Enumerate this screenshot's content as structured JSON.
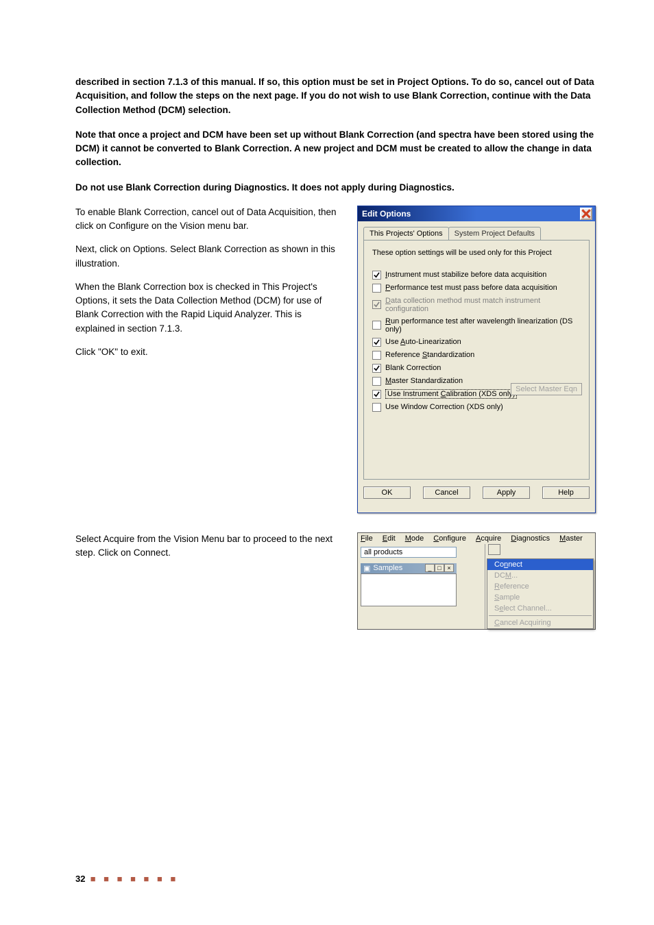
{
  "paragraphs": {
    "p1": "described in section 7.1.3 of this manual. If so, this option must be set in Project Options. To do so, cancel out of Data Acquisition, and follow the steps on the next page. If you do not wish to use Blank Correction, continue with the Data Collection Method (DCM) selection.",
    "p2": "Note that once a project and DCM have been set up without Blank Correction (and spectra have been stored using the DCM) it cannot be converted to Blank Correction. A new project and DCM must be created to allow the change in data collection.",
    "p3": "Do not use Blank Correction during Diagnostics. It does not apply during Diagnostics.",
    "l1": "To enable Blank Correction, cancel out of Data Acquisition, then click on Configure on the Vision menu bar.",
    "l2": "Next, click on Options. Select Blank Correction as shown in this illustration.",
    "l3": "When the Blank Correction box is checked in This Project's Options, it sets the Data Collection Method (DCM) for use of Blank Correction with the Rapid Liquid Analyzer. This is explained in section 7.1.3.",
    "l4": "Click \"OK\" to exit.",
    "l5": "Select Acquire from the Vision Menu bar to proceed to the next step. Click on Connect."
  },
  "dialog": {
    "title": "Edit Options",
    "tabs": [
      "This Projects' Options",
      "System Project Defaults"
    ],
    "note": "These option settings will be used only for this Project",
    "checks": [
      {
        "checked": true,
        "disabled": false,
        "label": "Instrument must stabilize before data acquisition",
        "underline_idx": 0
      },
      {
        "checked": false,
        "disabled": false,
        "label": "Performance test must pass before data acquisition",
        "underline_idx": 0
      },
      {
        "checked": true,
        "disabled": true,
        "label": "Data collection method must match instrument configuration",
        "underline_idx": 0
      },
      {
        "checked": false,
        "disabled": false,
        "label": "Run performance test after wavelength linearization (DS only)",
        "underline_idx": 0
      },
      {
        "checked": true,
        "disabled": false,
        "label": "Use Auto-Linearization",
        "underline_idx": 4
      },
      {
        "checked": false,
        "disabled": false,
        "label": "Reference Standardization",
        "underline_idx": 10
      },
      {
        "checked": true,
        "disabled": false,
        "label": "Blank Correction"
      },
      {
        "checked": false,
        "disabled": false,
        "label": "Master Standardization",
        "underline_idx": 0
      },
      {
        "checked": true,
        "disabled": false,
        "label": "Use Instrument Calibration (XDS only)",
        "dotted": true,
        "underline_idx": 15
      },
      {
        "checked": false,
        "disabled": false,
        "label": "Use Window Correction (XDS only)"
      }
    ],
    "select_btn": "Select Master Eqn",
    "buttons": [
      "OK",
      "Cancel",
      "Apply",
      "Help"
    ]
  },
  "menubar": {
    "items": [
      "File",
      "Edit",
      "Mode",
      "Configure",
      "Acquire",
      "Diagnostics",
      "Master"
    ],
    "allproducts": "all products",
    "samples_title": "Samples",
    "dropdown": [
      {
        "label": "Connect",
        "enabled": true,
        "selected": true,
        "underline_idx": 2
      },
      {
        "label": "DCM...",
        "enabled": false,
        "underline_idx": 2
      },
      {
        "label": "Reference",
        "enabled": false,
        "underline_idx": 0
      },
      {
        "label": "Sample",
        "enabled": false,
        "underline_idx": 0
      },
      {
        "label": "Select Channel...",
        "enabled": false,
        "underline_idx": 1
      },
      {
        "sep": true
      },
      {
        "label": "Cancel Acquiring",
        "enabled": false,
        "underline_idx": 0
      }
    ]
  },
  "footer": {
    "page": "32",
    "dots": "■ ■ ■ ■ ■ ■ ■"
  },
  "colors": {
    "titlebar_start": "#0a246a",
    "titlebar_end": "#3a6ed5",
    "dialog_bg": "#ece9d8",
    "text": "#000000",
    "disabled": "#808080",
    "menu_sel_bg": "#2b5fcd",
    "dots_color": "#b35a45"
  }
}
